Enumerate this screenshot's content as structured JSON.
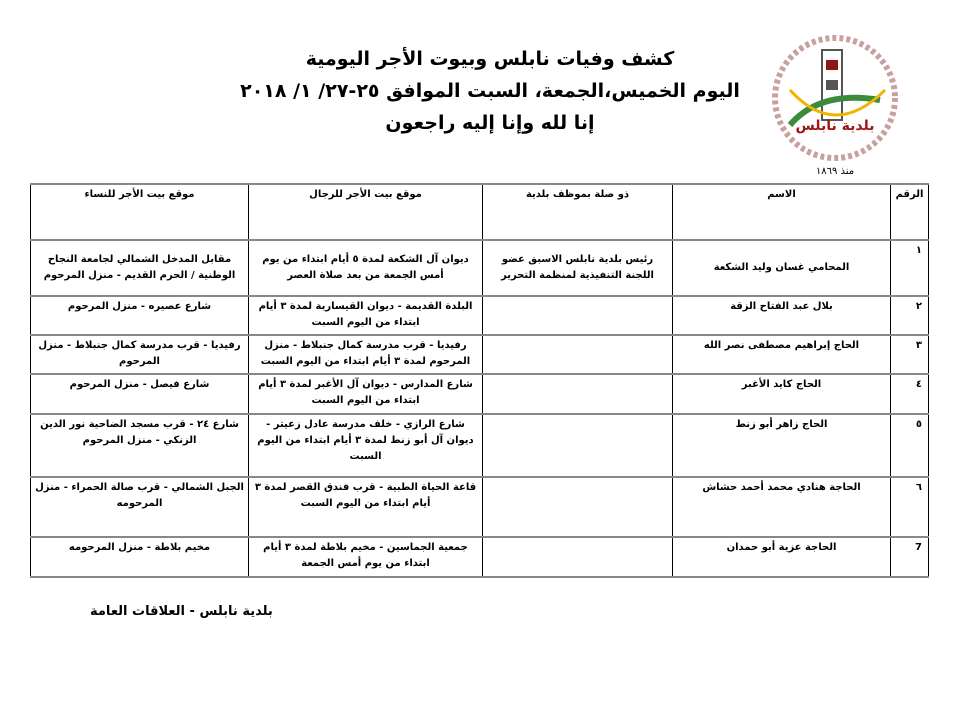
{
  "header": {
    "title": "كشف وفيات نابلس وبيوت الأجر اليومية",
    "dates": "اليوم الخميس،الجمعة، السبت الموافق ٢٥-٢٧/ ١/ ٢٠١٨",
    "verse": "إنا لله وإنا إليه راجعون"
  },
  "logo": {
    "text": "بلدية نابلس",
    "since": "منذ ١٨٦٩"
  },
  "table": {
    "columns": [
      "الرقم",
      "الاسم",
      "ذو صلة بموظف بلدية",
      "موقع بيت الأجر للرجال",
      "موقع بيت الأجر للنساء"
    ],
    "rows": [
      {
        "num": "١",
        "name": "المحامي غسان وليد الشكعة",
        "relation": "رئيس بلدية نابلس الاسبق عضو اللجنة التنفيذية لمنظمة التحرير",
        "men": "ديوان آل الشكعة لمدة ٥ أيام ابتداء من يوم أمس الجمعة من بعد صلاة العصر",
        "women": "مقابل المدخل الشمالي لجامعة النجاح الوطنية / الحرم القديم - منزل المرحوم"
      },
      {
        "num": "٢",
        "name": "بلال عبد الفتاح الزقة",
        "relation": "",
        "men": "البلدة القديمة - ديوان القيسارية لمدة ٣ أيام ابتداء من اليوم السبت",
        "women": "شارع عصيره - منزل المرحوم"
      },
      {
        "num": "٣",
        "name": "الحاج إبراهيم مصطفى نصر الله",
        "relation": "",
        "men": "رفيديا - قرب مدرسة كمال جنبلاط - منزل المرحوم لمدة ٣ أيام ابتداء من اليوم السبت",
        "women": "رفيديا - قرب مدرسة كمال جنبلاط - منزل المرحوم"
      },
      {
        "num": "٤",
        "name": "الحاج كايد الأغبر",
        "relation": "",
        "men": "شارع المدارس - ديوان آل الأغبر لمدة ٣ أيام ابتداء من اليوم السبت",
        "women": "شارع فيصل - منزل المرحوم"
      },
      {
        "num": "٥",
        "name": "الحاج زاهر أبو زنط",
        "relation": "",
        "men": "شارع الرازي - خلف مدرسة عادل زعيتر - ديوان آل أبو زنط لمدة ٣ أيام ابتداء من اليوم السبت",
        "women": "شارع ٢٤ - قرب مسجد الضاحية نور الدين الزنكي - منزل المرحوم"
      },
      {
        "num": "٦",
        "name": "الحاجة هنادي محمد أحمد حشاش",
        "relation": "",
        "men": "قاعة الحياة الطبية - قرب فندق القصر لمدة ٣ أيام ابتداء من اليوم السبت",
        "women": "الجبل الشمالي - قرب صالة الحمراء - منزل المرحومه"
      },
      {
        "num": "7",
        "name": "الحاجة عزية أبو حمدان",
        "relation": "",
        "men": "جمعية الجماسين - مخيم بلاطة لمدة ٣ أيام ابتداء من يوم أمس الجمعة",
        "women": "مخيم بلاطة - منزل المرحومه"
      }
    ]
  },
  "footer": "بلدية نابلس - العلاقات العامة"
}
